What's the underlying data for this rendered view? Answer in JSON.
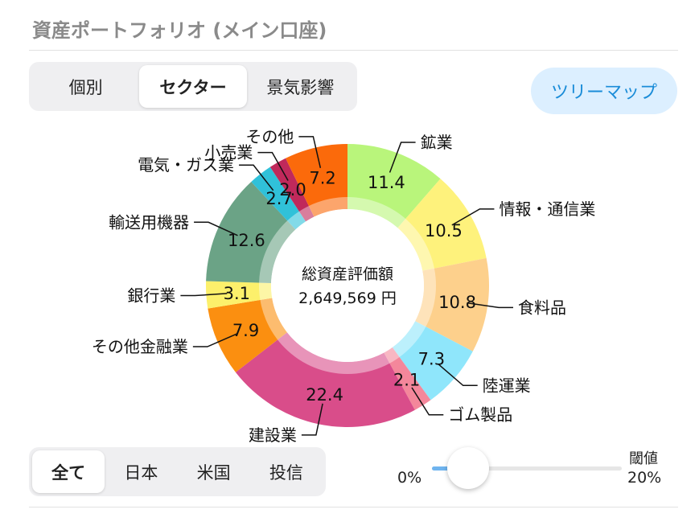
{
  "header": {
    "title": "資産ポートフォリオ (メイン口座)"
  },
  "view_tabs": [
    "個別",
    "セクター",
    "景気影響"
  ],
  "treemap_button": "ツリーマップ",
  "chart_data": {
    "type": "pie",
    "categories": [
      "鉱業",
      "情報・通信業",
      "食料品",
      "陸運業",
      "ゴム製品",
      "建設業",
      "その他金融業",
      "銀行業",
      "輸送用機器",
      "電気・ガス業",
      "小売業",
      "その他"
    ],
    "values": [
      11.4,
      10.5,
      10.8,
      7.3,
      2.1,
      22.4,
      7.9,
      3.1,
      12.6,
      2.7,
      2.0,
      7.2
    ],
    "value_labels": [
      "11.4",
      "10.5",
      "10.8",
      "7.3",
      "2.1",
      "22.4",
      "7.9",
      "3.1",
      "12.6",
      "2.7",
      "2.0",
      "7.2"
    ],
    "colors": [
      "#b9f57b",
      "#fef27c",
      "#fdd08c",
      "#8fe6fb",
      "#f4879b",
      "#d94d8a",
      "#fb8f10",
      "#fcf06b",
      "#6ba386",
      "#30c1d9",
      "#c0295b",
      "#fb6a0b"
    ],
    "center_title": "総資産評価額",
    "center_value": "2,649,569 円"
  },
  "region_tabs": [
    "全て",
    "日本",
    "米国",
    "投信"
  ],
  "slider": {
    "min_label": "0%",
    "title": "閾値",
    "max_label": "20%"
  }
}
